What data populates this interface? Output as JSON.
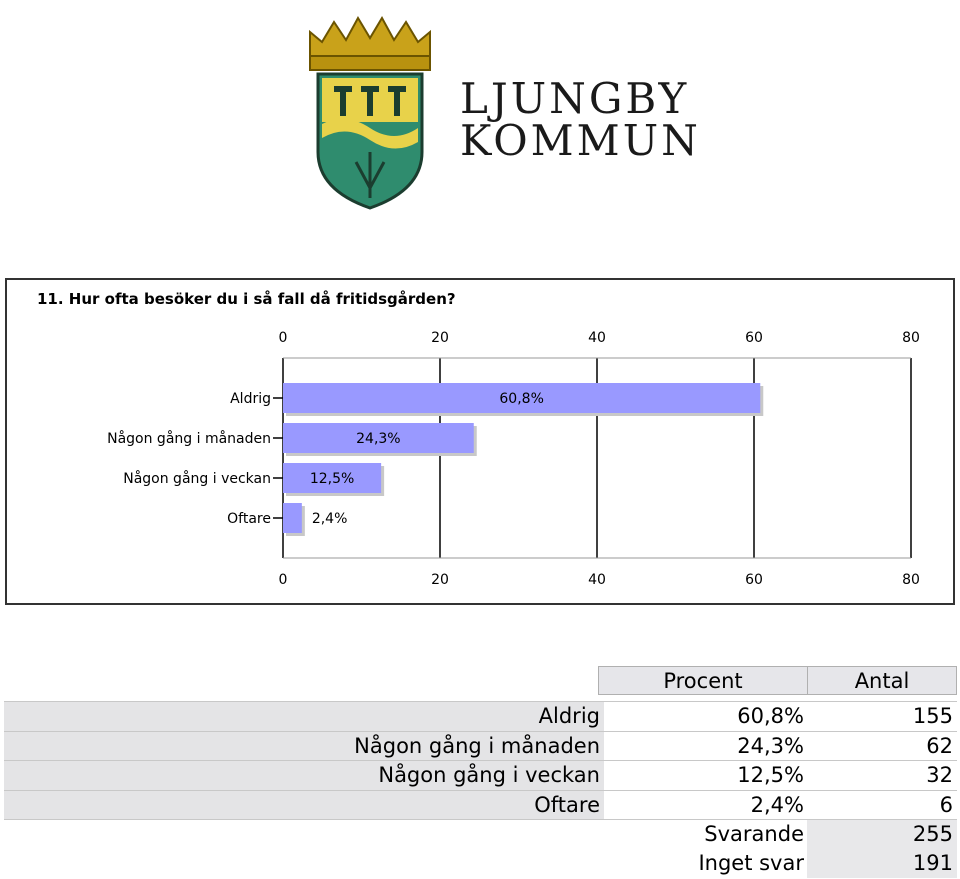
{
  "logo": {
    "text_line1": "LJUNGBY",
    "text_line2": "KOMMUN"
  },
  "chart_data": {
    "type": "bar",
    "orientation": "horizontal",
    "title": "11. Hur ofta besöker du i så fall då fritidsgården?",
    "categories": [
      "Aldrig",
      "Någon gång i månaden",
      "Någon gång i veckan",
      "Oftare"
    ],
    "values": [
      60.8,
      24.3,
      12.5,
      2.4
    ],
    "data_labels": [
      "60,8%",
      "24,3%",
      "12,5%",
      "2,4%"
    ],
    "xlim": [
      0,
      80
    ],
    "xticks": [
      0,
      20,
      40,
      60,
      80
    ],
    "grid": true,
    "bar_color": "#9999ff"
  },
  "table": {
    "headers": [
      "Procent",
      "Antal"
    ],
    "rows": [
      {
        "label": "Aldrig",
        "procent": "60,8%",
        "antal": "155"
      },
      {
        "label": "Någon gång i månaden",
        "procent": "24,3%",
        "antal": "62"
      },
      {
        "label": "Någon gång i veckan",
        "procent": "12,5%",
        "antal": "32"
      },
      {
        "label": "Oftare",
        "procent": "2,4%",
        "antal": "6"
      }
    ],
    "summary": [
      {
        "label": "Svarande",
        "value": "255"
      },
      {
        "label": "Inget svar",
        "value": "191"
      }
    ]
  }
}
